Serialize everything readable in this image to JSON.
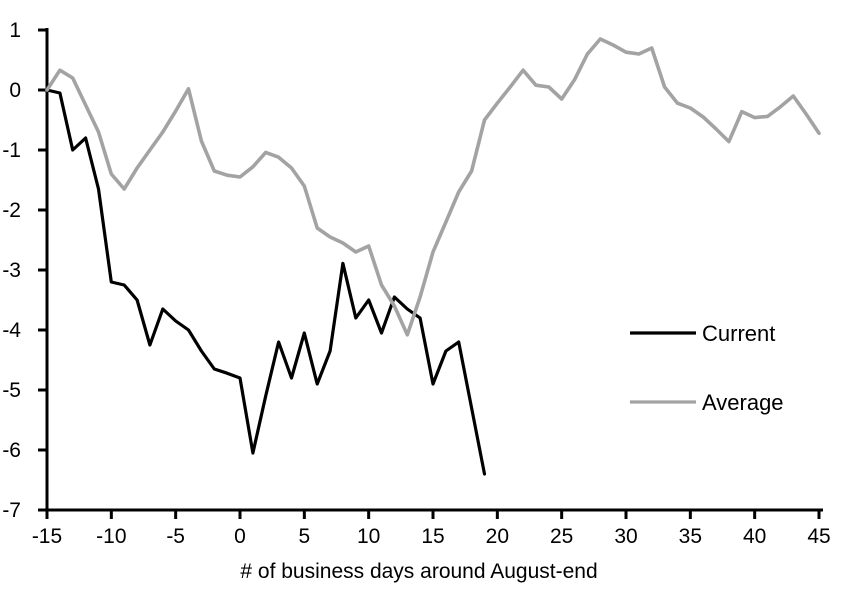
{
  "chart_data": {
    "type": "line",
    "title": "",
    "xlabel": "# of business days around August-end",
    "ylabel": "",
    "xlim": [
      -15,
      45
    ],
    "ylim": [
      -7,
      1
    ],
    "grid": false,
    "legend_position": "middle-right",
    "x_ticks": [
      -15,
      -10,
      -5,
      0,
      5,
      10,
      15,
      20,
      25,
      30,
      35,
      40,
      45
    ],
    "y_ticks": [
      1,
      0,
      -1,
      -2,
      -3,
      -4,
      -5,
      -6,
      -7
    ],
    "series": [
      {
        "name": "Current",
        "color": "#000000",
        "stroke_width": 3.2,
        "x_start": -15,
        "x_step": 1,
        "x_end": 19,
        "values": [
          0,
          -0.05,
          -1.0,
          -0.8,
          -1.65,
          -3.2,
          -3.25,
          -3.5,
          -4.25,
          -3.65,
          -3.85,
          -4.0,
          -4.35,
          -4.65,
          -4.72,
          -4.8,
          -6.05,
          -5.1,
          -4.2,
          -4.8,
          -4.05,
          -4.9,
          -4.35,
          -2.89,
          -3.8,
          -3.5,
          -4.05,
          -3.45,
          -3.65,
          -3.8,
          -4.9,
          -4.35,
          -4.2,
          -5.3,
          -6.4
        ]
      },
      {
        "name": "Average",
        "color": "#a3a3a3",
        "stroke_width": 3.6,
        "x_start": -15,
        "x_step": 1,
        "x_end": 45,
        "values": [
          0,
          0.33,
          0.2,
          -0.25,
          -0.7,
          -1.4,
          -1.65,
          -1.3,
          -1.0,
          -0.7,
          -0.35,
          0.02,
          -0.85,
          -1.35,
          -1.42,
          -1.45,
          -1.28,
          -1.04,
          -1.12,
          -1.3,
          -1.6,
          -2.3,
          -2.45,
          -2.55,
          -2.7,
          -2.6,
          -3.25,
          -3.6,
          -4.08,
          -3.45,
          -2.7,
          -2.2,
          -1.7,
          -1.35,
          -0.5,
          -0.22,
          0.05,
          0.33,
          0.08,
          0.05,
          -0.15,
          0.17,
          0.6,
          0.85,
          0.75,
          0.63,
          0.6,
          0.7,
          0.05,
          -0.22,
          -0.3,
          -0.45,
          -0.65,
          -0.86,
          -0.36,
          -0.46,
          -0.44,
          -0.28,
          -0.1,
          -0.4,
          -0.72
        ]
      }
    ],
    "colors": {
      "axis": "#000000",
      "text": "#000000",
      "background": "#ffffff"
    }
  },
  "legend": {
    "current_label": "Current",
    "average_label": "Average"
  }
}
